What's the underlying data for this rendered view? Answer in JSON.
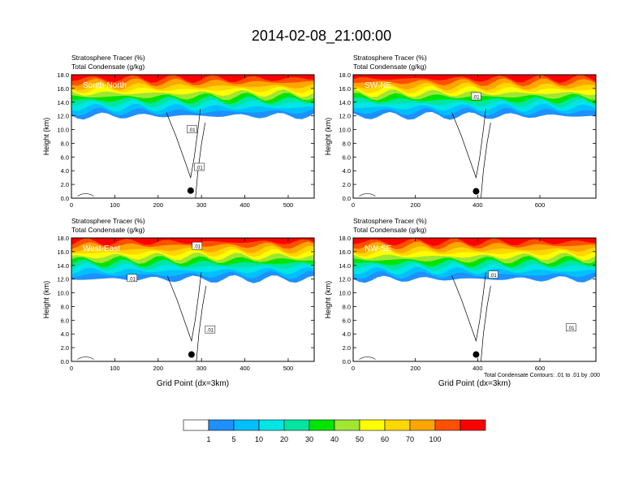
{
  "title": "2014-02-08_21:00:00",
  "contour_note": "Total Condensate Contours: .01 to .01 by .000",
  "colorbar": {
    "levels": [
      "1",
      "5",
      "10",
      "20",
      "30",
      "40",
      "50",
      "60",
      "70",
      "100"
    ],
    "colors": [
      "#ffffff",
      "#1e90ff",
      "#00bfff",
      "#00e5e5",
      "#00e5a0",
      "#00e500",
      "#a0e632",
      "#ffff00",
      "#ffd700",
      "#ffa500",
      "#ff5000",
      "#ff0000"
    ]
  },
  "chart_data": [
    {
      "type": "heatmap",
      "panel": "South-North",
      "title_line1": "Stratosphere Tracer   (%)",
      "title_line2": "Total Condensate   (g/kg)",
      "ylabel": "Height (km)",
      "xlabel": "",
      "ylim": [
        0,
        18
      ],
      "xlim": [
        0,
        560
      ],
      "yticks": [
        "0.0",
        "2.0",
        "4.0",
        "6.0",
        "8.0",
        "10.0",
        "12.0",
        "14.0",
        "16.0",
        "18.0"
      ],
      "yvals": [
        0,
        2,
        4,
        6,
        8,
        10,
        12,
        14,
        16,
        18
      ],
      "xticks": [
        "0",
        "100",
        "200",
        "300",
        "400",
        "500"
      ],
      "xvals": [
        0,
        100,
        200,
        300,
        400,
        500
      ],
      "contour_labels": [
        ".01",
        ".01"
      ],
      "contour_label_pos": [
        [
          278,
          10
        ],
        [
          295,
          4.5
        ]
      ],
      "marker": [
        275,
        1.1
      ]
    },
    {
      "type": "heatmap",
      "panel": "SW-NE",
      "title_line1": "Stratosphere Tracer   (%)",
      "title_line2": "Total Condensate   (g/kg)",
      "ylabel": "Height (km)",
      "xlabel": "",
      "ylim": [
        0,
        18
      ],
      "xlim": [
        0,
        780
      ],
      "yticks": [
        "0.0",
        "2.0",
        "4.0",
        "6.0",
        "8.0",
        "10.0",
        "12.0",
        "14.0",
        "16.0",
        "18.0"
      ],
      "yvals": [
        0,
        2,
        4,
        6,
        8,
        10,
        12,
        14,
        16,
        18
      ],
      "xticks": [
        "0",
        "200",
        "400",
        "600"
      ],
      "xvals": [
        0,
        200,
        400,
        600
      ],
      "contour_labels": [
        ".01"
      ],
      "contour_label_pos": [
        [
          395,
          14.8
        ]
      ],
      "marker": [
        395,
        1.0
      ]
    },
    {
      "type": "heatmap",
      "panel": "West-East",
      "title_line1": "Stratosphere Tracer   (%)",
      "title_line2": "Total Condensate   (g/kg)",
      "ylabel": "Height (km)",
      "xlabel": "Grid Point (dx=3km)",
      "ylim": [
        0,
        18
      ],
      "xlim": [
        0,
        560
      ],
      "yticks": [
        "0.0",
        "2.0",
        "4.0",
        "6.0",
        "8.0",
        "10.0",
        "12.0",
        "14.0",
        "16.0",
        "18.0"
      ],
      "yvals": [
        0,
        2,
        4,
        6,
        8,
        10,
        12,
        14,
        16,
        18
      ],
      "xticks": [
        "0",
        "100",
        "200",
        "300",
        "400",
        "500"
      ],
      "xvals": [
        0,
        100,
        200,
        300,
        400,
        500
      ],
      "contour_labels": [
        ".01",
        ".01",
        ".01"
      ],
      "contour_label_pos": [
        [
          290,
          16.8
        ],
        [
          140,
          12.1
        ],
        [
          320,
          4.6
        ]
      ],
      "marker": [
        277,
        1.0
      ]
    },
    {
      "type": "heatmap",
      "panel": "NW-SE",
      "title_line1": "Stratosphere Tracer   (%)",
      "title_line2": "Total Condensate   (g/kg)",
      "ylabel": "Height (km)",
      "xlabel": "Grid Point (dx=3km)",
      "ylim": [
        0,
        18
      ],
      "xlim": [
        0,
        780
      ],
      "yticks": [
        "0.0",
        "2.0",
        "4.0",
        "6.0",
        "8.0",
        "10.0",
        "12.0",
        "14.0",
        "16.0",
        "18.0"
      ],
      "yvals": [
        0,
        2,
        4,
        6,
        8,
        10,
        12,
        14,
        16,
        18
      ],
      "xticks": [
        "0",
        "200",
        "400",
        "600"
      ],
      "xvals": [
        0,
        200,
        400,
        600
      ],
      "contour_labels": [
        ".01",
        ".01"
      ],
      "contour_label_pos": [
        [
          450,
          12.6
        ],
        [
          700,
          4.9
        ]
      ],
      "marker": [
        395,
        1.0
      ]
    }
  ]
}
